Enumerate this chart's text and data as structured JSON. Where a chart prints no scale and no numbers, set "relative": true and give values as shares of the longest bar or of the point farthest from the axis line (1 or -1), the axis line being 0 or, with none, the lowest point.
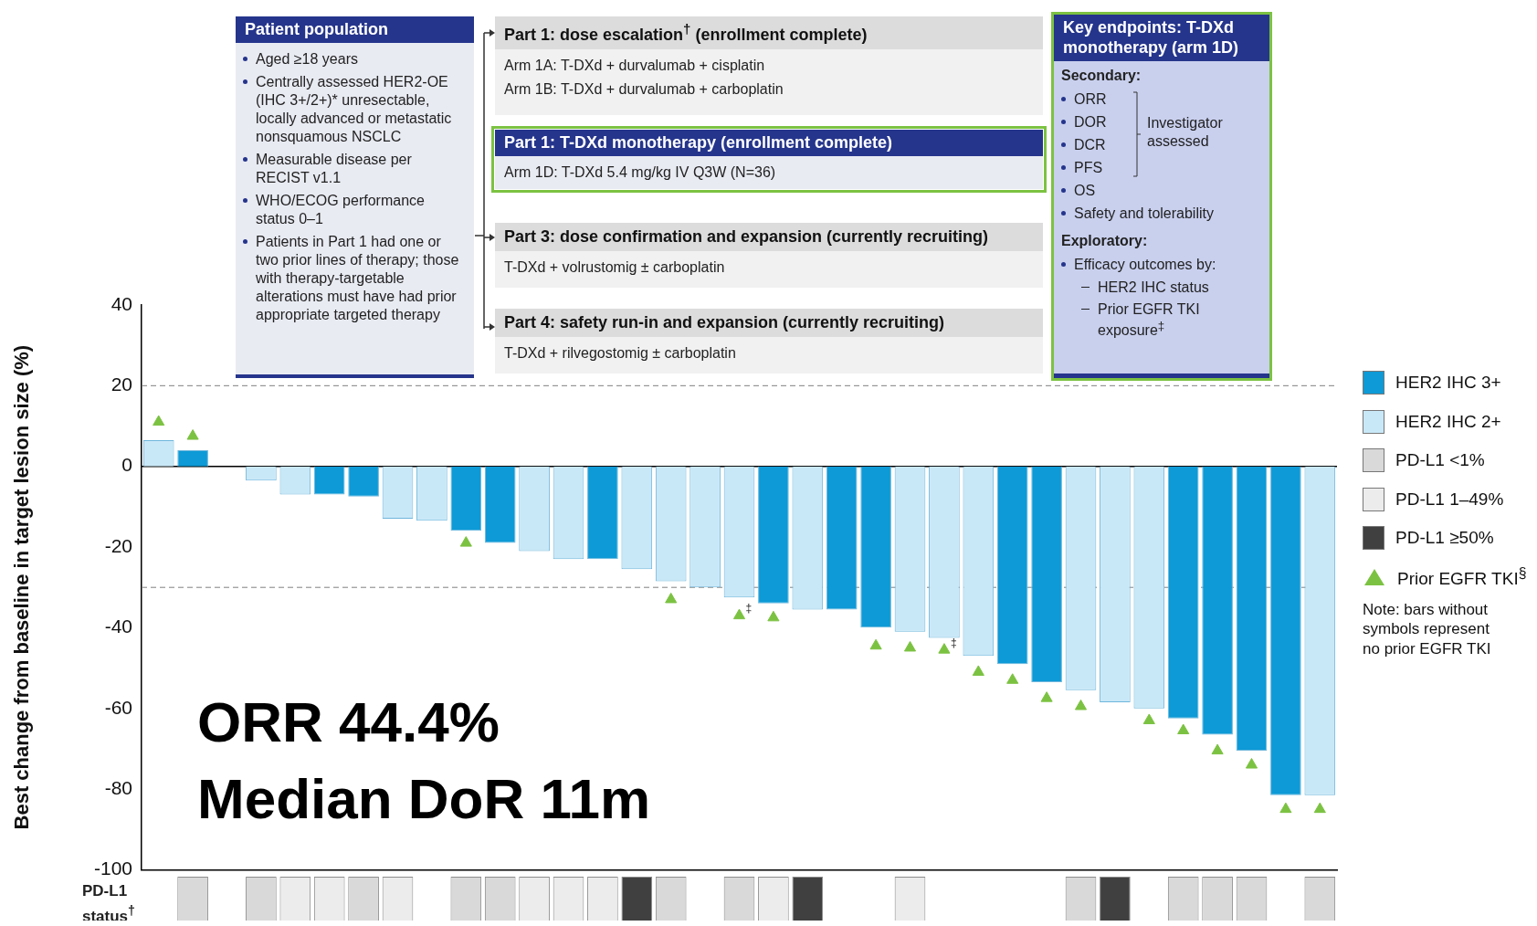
{
  "chart_data": [
    {
      "type": "bar",
      "ylabel": "Best change from baseline in target lesion size (%)",
      "categories": [
        null,
        null,
        null,
        null,
        null,
        null,
        null,
        null,
        null,
        null,
        null,
        null,
        null,
        null,
        null,
        null,
        null,
        null,
        null,
        null,
        null,
        null,
        null,
        null,
        null,
        null,
        null,
        null,
        null,
        null,
        null,
        null,
        null,
        null,
        null
      ],
      "series": [
        {
          "name": "HER2 IHC 3+",
          "color": "#0d9ad6",
          "values": [
            null,
            4,
            null,
            null,
            null,
            -7,
            -7.5,
            null,
            null,
            -16,
            -19,
            null,
            null,
            -23,
            null,
            null,
            null,
            null,
            -34,
            null,
            -35.5,
            -40,
            null,
            null,
            null,
            -49,
            -53.5,
            null,
            null,
            null,
            -62.5,
            -66.5,
            -70.5,
            -81.5,
            null
          ]
        },
        {
          "name": "HER2 IHC 2+",
          "color": "#c9e8f7",
          "values": [
            6.5,
            null,
            null,
            -3.5,
            -7,
            null,
            null,
            -13,
            -13.5,
            null,
            null,
            -21,
            -23,
            null,
            -25.5,
            -28.5,
            -30,
            -32.5,
            null,
            -35.5,
            null,
            null,
            -41,
            -42.5,
            -47,
            null,
            null,
            -55.5,
            -58.5,
            -60,
            null,
            null,
            null,
            null,
            -81.5
          ]
        },
        {
          "name": "Prior EGFR TKI$^{§}$",
          "type": "scatter",
          "color": "#7cc242",
          "values": [
            11,
            7.5,
            null,
            null,
            null,
            null,
            null,
            null,
            null,
            -19,
            null,
            null,
            null,
            null,
            null,
            -33,
            null,
            -37,
            -37.5,
            null,
            null,
            -44.5,
            -45,
            -45.5,
            -51,
            -53,
            -57.5,
            -59.5,
            null,
            -63,
            -65.5,
            -70.5,
            -74,
            -85,
            -85
          ],
          "value_labels": [
            null,
            null,
            null,
            null,
            null,
            null,
            null,
            null,
            null,
            null,
            null,
            null,
            null,
            null,
            null,
            null,
            null,
            "‡",
            null,
            null,
            null,
            null,
            null,
            "‡",
            null,
            null,
            null,
            null,
            null,
            null,
            null,
            null,
            null,
            null,
            null
          ]
        }
      ],
      "marker": "triangle",
      "ylim": [
        -100,
        40
      ],
      "yticks": [
        40,
        20,
        0,
        -20,
        -40,
        -60,
        -80,
        -100
      ],
      "legend": "right",
      "ref_lines": [
        {
          "axis": "y",
          "value": 20,
          "line_style": "dashed",
          "color": "#808080"
        },
        {
          "axis": "y",
          "value": -30,
          "line_style": "dashed",
          "color": "#808080"
        }
      ],
      "annotations": [
        "ORR 44.4%",
        "Median DoR 11m",
        "Note: bars without symbols represent no prior EGFR TKI",
        "Patient population",
        "Aged ≥18 years",
        "Centrally assessed HER2-OE (IHC 3+/2+)* unresectable, locally advanced or metastatic nonsquamous NSCLC",
        "Measurable disease per RECIST v1.1",
        "WHO/ECOG performance status 0–1",
        "Patients in Part 1 had one or two prior lines of therapy; those with therapy-targetable alterations must have had prior appropriate targeted therapy",
        "Part 1: dose escalation$^{†}$ (enrollment complete)",
        "Arm 1A: T-DXd + durvalumab + cisplatin",
        "Arm 1B: T-DXd + durvalumab + carboplatin",
        "Part 1: T-DXd monotherapy (enrollment complete)",
        "Arm 1D: T-DXd 5.4 mg/kg IV Q3W (N=36)",
        "Part 3: dose confirmation and expansion (currently recruiting)",
        "T-DXd + volrustomig ± carboplatin",
        "Part 4: safety run-in and expansion (currently recruiting)",
        "T-DXd + rilvegostomig ± carboplatin",
        "Key endpoints: T-DXd monotherapy (arm 1D)",
        "Secondary:",
        "ORR",
        "DOR",
        "DCR",
        "PFS",
        "Investigator assessed",
        "OS",
        "Safety and tolerability",
        "Exploratory:",
        "Efficacy outcomes by:",
        "HER2 IHC status",
        "Prior EGFR TKI exposure$^{‡}$"
      ]
    },
    {
      "type": "bar",
      "relative": true,
      "ylabel": "PD-L1 status$^{†}$",
      "categories": [
        null,
        null,
        null,
        null,
        null,
        null,
        null,
        null,
        null,
        null,
        null,
        null,
        null,
        null,
        null,
        null,
        null,
        null,
        null,
        null,
        null,
        null,
        null,
        null,
        null,
        null,
        null,
        null,
        null,
        null,
        null,
        null,
        null,
        null,
        null
      ],
      "series": [
        {
          "name": "PD-L1 <1%",
          "color": "#d9d9d9",
          "values": [
            null,
            1,
            null,
            1,
            null,
            null,
            1,
            null,
            null,
            1,
            1,
            null,
            null,
            null,
            null,
            1,
            null,
            1,
            null,
            null,
            null,
            null,
            null,
            null,
            null,
            null,
            null,
            1,
            null,
            null,
            1,
            1,
            1,
            null,
            1
          ]
        },
        {
          "name": "PD-L1 1–49%",
          "color": "#ececec",
          "values": [
            null,
            null,
            null,
            null,
            1,
            1,
            null,
            1,
            null,
            null,
            null,
            1,
            1,
            1,
            null,
            null,
            null,
            null,
            1,
            null,
            null,
            null,
            1,
            null,
            null,
            null,
            null,
            null,
            null,
            null,
            null,
            null,
            null,
            null,
            null
          ]
        },
        {
          "name": "PD-L1 ≥50%",
          "color": "#404040",
          "values": [
            null,
            null,
            null,
            null,
            null,
            null,
            null,
            null,
            null,
            null,
            null,
            null,
            null,
            null,
            1,
            null,
            null,
            null,
            null,
            1,
            null,
            null,
            null,
            null,
            null,
            null,
            null,
            null,
            1,
            null,
            null,
            null,
            null,
            null,
            null
          ]
        }
      ],
      "tick_labels": false,
      "legend": "right"
    }
  ]
}
